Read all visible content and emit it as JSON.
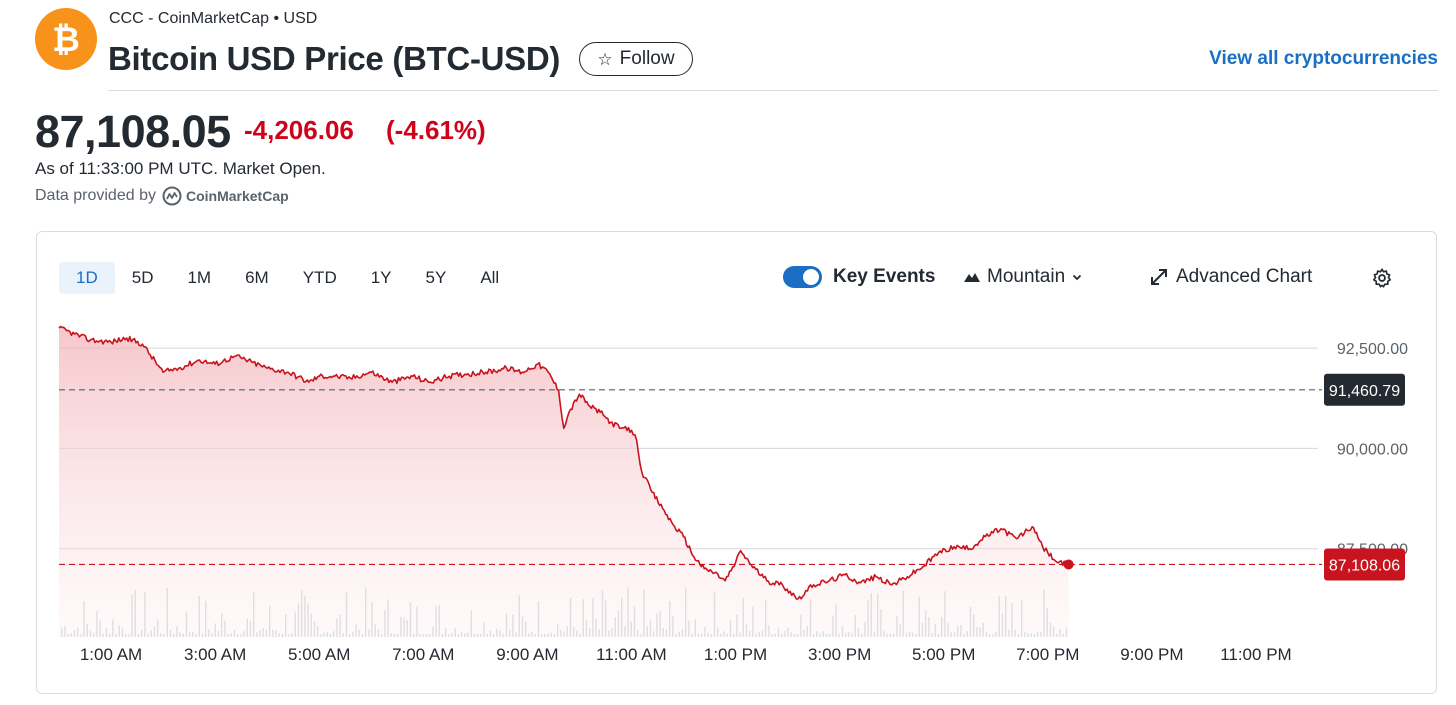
{
  "header": {
    "source_line": "CCC - CoinMarketCap • USD",
    "title": "Bitcoin USD Price (BTC-USD)",
    "follow_label": "Follow",
    "view_all_label": "View all cryptocurrencies",
    "logo_symbol": "₿"
  },
  "quote": {
    "price": "87,108.05",
    "change": "-4,206.06",
    "change_pct": "(-4.61%)",
    "as_of": "As of 11:33:00 PM UTC. Market Open.",
    "provider_prefix": "Data provided by",
    "provider_name": "CoinMarketCap"
  },
  "toolbar": {
    "ranges": [
      "1D",
      "5D",
      "1M",
      "6M",
      "YTD",
      "1Y",
      "5Y",
      "All"
    ],
    "active_range": "1D",
    "key_events_label": "Key Events",
    "key_events_on": true,
    "chart_style_label": "Mountain",
    "advanced_chart_label": "Advanced Chart"
  },
  "colors": {
    "accent": "#1a6fc5",
    "negative": "#d0021b",
    "line": "#c8141e",
    "logo": "#f7931a"
  },
  "chart_data": {
    "type": "area",
    "x_unit": "hours since midnight UTC",
    "x_tick_labels": [
      "1:00 AM",
      "3:00 AM",
      "5:00 AM",
      "7:00 AM",
      "9:00 AM",
      "11:00 AM",
      "1:00 PM",
      "3:00 PM",
      "5:00 PM",
      "7:00 PM",
      "9:00 PM",
      "11:00 PM"
    ],
    "x_tick_values": [
      1,
      3,
      5,
      7,
      9,
      11,
      13,
      15,
      17,
      19,
      21,
      23
    ],
    "xlim": [
      0,
      24
    ],
    "y_tick_values": [
      87500,
      90000,
      92500
    ],
    "y_tick_labels": [
      "87,500.00",
      "90,000.00",
      "92,500.00"
    ],
    "ylim": [
      85300,
      93200
    ],
    "reference_lines": [
      {
        "value": 91460.79,
        "label": "91,460.79",
        "kind": "previous close"
      },
      {
        "value": 87108.06,
        "label": "87,108.06",
        "kind": "current price"
      }
    ],
    "grid": true,
    "series": [
      {
        "x": [
          0,
          0.3,
          0.6,
          1.0,
          1.3,
          1.6,
          2.0,
          2.3,
          2.7,
          3.0,
          3.4,
          3.7,
          4.0,
          4.4,
          4.8,
          5.0,
          5.3,
          5.6,
          6.0,
          6.4,
          6.8,
          7.1,
          7.5,
          7.8,
          8.2,
          8.6,
          8.9,
          9.2,
          9.4,
          9.6,
          9.7,
          9.8,
          10.0,
          10.2,
          10.4,
          10.6,
          10.8,
          11.0,
          11.1,
          11.2,
          11.4,
          11.6,
          11.8,
          12.0,
          12.2,
          12.4,
          12.6,
          12.8,
          13.0,
          13.1,
          13.3,
          13.6,
          13.9,
          14.2,
          14.5,
          14.8,
          15.1,
          15.4,
          15.7,
          16.0,
          16.3,
          16.6,
          16.9,
          17.2,
          17.5,
          17.8,
          18.1,
          18.4,
          18.7,
          18.9,
          19.0,
          19.2,
          19.4
        ],
        "values": [
          93000,
          92850,
          92700,
          92650,
          92750,
          92600,
          91900,
          92000,
          92200,
          92100,
          92300,
          92150,
          92000,
          91900,
          91650,
          91800,
          91800,
          91750,
          91900,
          91650,
          91800,
          91650,
          91800,
          91850,
          91900,
          92000,
          91900,
          92100,
          91900,
          91450,
          90500,
          90900,
          91350,
          91050,
          90900,
          90650,
          90500,
          90450,
          90200,
          89400,
          88900,
          88500,
          88100,
          87800,
          87300,
          87000,
          86900,
          86700,
          87150,
          87450,
          87100,
          86700,
          86600,
          86250,
          86600,
          86700,
          86850,
          86650,
          86800,
          86600,
          86800,
          87050,
          87400,
          87550,
          87500,
          87800,
          88000,
          87750,
          88050,
          87550,
          87400,
          87150,
          87108.06
        ]
      }
    ]
  }
}
